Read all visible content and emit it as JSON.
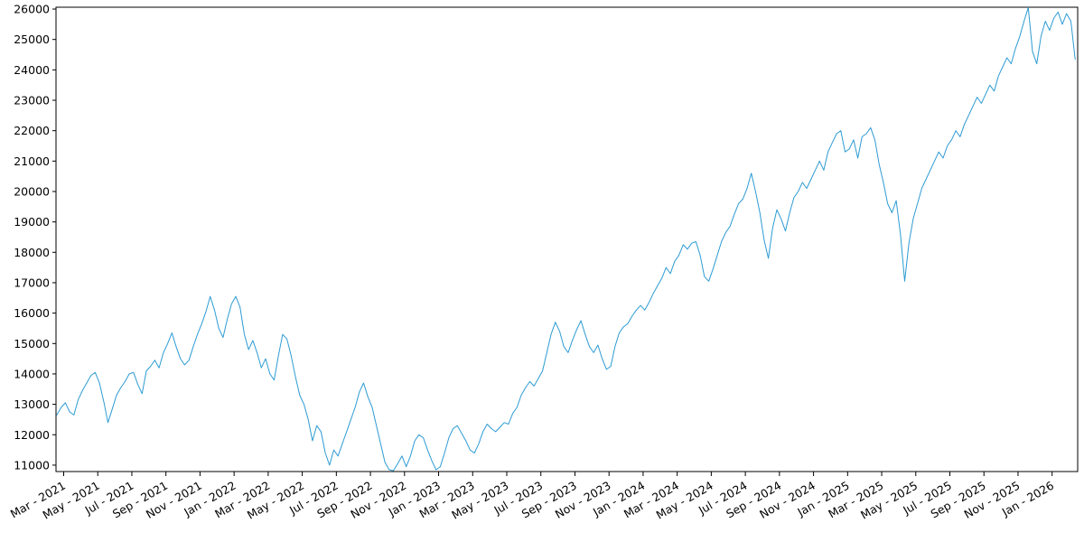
{
  "figure": {
    "title": "",
    "background_color": "#ffffff"
  },
  "chart_data": {
    "type": "line",
    "title": "",
    "xlabel": "",
    "ylabel": "",
    "grid": false,
    "legend": null,
    "line_color": "#2d9bd3",
    "line_width": 1,
    "axis_color": "#000000",
    "xlim_months": [
      -0.45,
      59.5
    ],
    "ylim": [
      10790,
      26060
    ],
    "y_axis": {
      "ticks": [
        11000,
        12000,
        13000,
        14000,
        15000,
        16000,
        17000,
        18000,
        19000,
        20000,
        21000,
        22000,
        23000,
        24000,
        25000,
        26000
      ]
    },
    "x_axis": {
      "tick_labels": [
        "Mar - 2021",
        "May - 2021",
        "Jul - 2021",
        "Sep - 2021",
        "Nov - 2021",
        "Jan - 2022",
        "Mar - 2022",
        "May - 2022",
        "Jul - 2022",
        "Sep - 2022",
        "Nov - 2022",
        "Jan - 2023",
        "Mar - 2023",
        "May - 2023",
        "Jul - 2023",
        "Sep - 2023",
        "Nov - 2023",
        "Jan - 2024",
        "Mar - 2024",
        "May - 2024",
        "Jul - 2024",
        "Sep - 2024",
        "Nov - 2024",
        "Jan - 2025",
        "Mar - 2025",
        "May - 2025",
        "Jul - 2025",
        "Sep - 2025",
        "Nov - 2025",
        "Jan - 2026"
      ],
      "tick_month_offsets": [
        0,
        2,
        4,
        6,
        8,
        10,
        12,
        14,
        16,
        18,
        20,
        22,
        24,
        26,
        28,
        30,
        32,
        34,
        36,
        38,
        40,
        42,
        44,
        46,
        48,
        50,
        52,
        54,
        56,
        58
      ],
      "label_rotation_deg": 30
    },
    "series": {
      "x_start_month": -0.4,
      "x_step_month": 0.25,
      "values": [
        12650,
        12900,
        13050,
        12750,
        12650,
        13150,
        13450,
        13700,
        13950,
        14050,
        13700,
        13100,
        12400,
        12850,
        13300,
        13550,
        13750,
        14000,
        14050,
        13650,
        13350,
        14100,
        14250,
        14450,
        14200,
        14700,
        15000,
        15350,
        14900,
        14500,
        14300,
        14450,
        14900,
        15300,
        15650,
        16050,
        16550,
        16100,
        15500,
        15200,
        15800,
        16300,
        16550,
        16200,
        15300,
        14800,
        15100,
        14700,
        14200,
        14500,
        14000,
        13800,
        14600,
        15300,
        15150,
        14600,
        13900,
        13300,
        13000,
        12500,
        11800,
        12300,
        12100,
        11400,
        11000,
        11500,
        11300,
        11700,
        12100,
        12500,
        12900,
        13400,
        13700,
        13250,
        12900,
        12300,
        11700,
        11100,
        10850,
        10820,
        11050,
        11300,
        10950,
        11300,
        11800,
        12000,
        11900,
        11500,
        11150,
        10850,
        10950,
        11400,
        11900,
        12200,
        12300,
        12050,
        11800,
        11500,
        11400,
        11700,
        12100,
        12350,
        12200,
        12100,
        12250,
        12400,
        12350,
        12700,
        12900,
        13300,
        13550,
        13750,
        13600,
        13850,
        14100,
        14700,
        15300,
        15700,
        15400,
        14900,
        14700,
        15100,
        15450,
        15750,
        15300,
        14900,
        14700,
        14950,
        14500,
        14150,
        14250,
        14900,
        15350,
        15550,
        15650,
        15900,
        16100,
        16250,
        16100,
        16350,
        16650,
        16900,
        17150,
        17500,
        17300,
        17700,
        17900,
        18250,
        18100,
        18300,
        18350,
        17900,
        17200,
        17050,
        17450,
        17900,
        18350,
        18650,
        18850,
        19250,
        19600,
        19750,
        20100,
        20600,
        20000,
        19300,
        18400,
        17800,
        18800,
        19400,
        19100,
        18700,
        19300,
        19800,
        20000,
        20300,
        20100,
        20400,
        20700,
        21000,
        20700,
        21300,
        21600,
        21900,
        22000,
        21300,
        21400,
        21700,
        21100,
        21800,
        21900,
        22100,
        21700,
        20900,
        20300,
        19600,
        19300,
        19700,
        18600,
        17050,
        18300,
        19100,
        19600,
        20100,
        20400,
        20700,
        21000,
        21300,
        21100,
        21500,
        21700,
        22000,
        21800,
        22200,
        22500,
        22800,
        23100,
        22900,
        23200,
        23500,
        23300,
        23800,
        24100,
        24400,
        24200,
        24700,
        25100,
        25600,
        26050,
        24600,
        24200,
        25100,
        25600,
        25300,
        25700,
        25900,
        25500,
        25850,
        25600,
        24350
      ]
    }
  }
}
